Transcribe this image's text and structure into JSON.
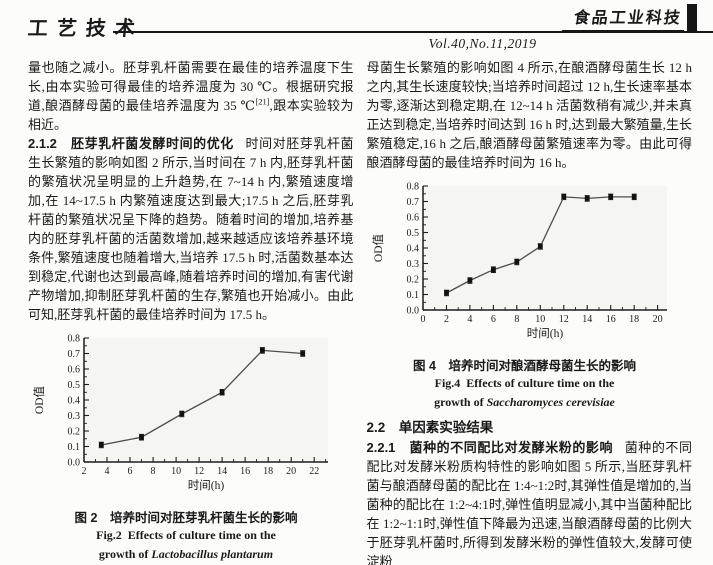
{
  "header": {
    "column_label": "工艺技术",
    "journal_name": "食品工业科技",
    "issue": "Vol.40,No.11,2019"
  },
  "left": {
    "p1_pre": "量也随之减小。胚芽乳杆菌需要在最佳的培养温度下生长,由本实验可得最佳的培养温度为 30 ℃。根据研究报道,酿酒酵母菌的最佳培养温度为 35 ℃",
    "p1_ref": "[21]",
    "p1_post": ",跟本实验较为相近。",
    "sec212_heading": "2.1.2　胚芽乳杆菌发酵时间的优化",
    "sec212_body": "时间对胚芽乳杆菌生长繁殖的影响如图 2 所示,当时间在 7 h 内,胚芽乳杆菌的繁殖状况呈明显的上升趋势,在 7~14 h 内,繁殖速度增加,在 14~17.5 h 内繁殖速度达到最大;17.5 h 之后,胚芽乳杆菌的繁殖状况呈下降的趋势。随着时间的增加,培养基内的胚芽乳杆菌的活菌数增加,越来越适应该培养基环境条件,繁殖速度也随着增大,当培养 17.5 h 时,活菌数基本达到稳定,代谢也达到最高峰,随着培养时间的增加,有害代谢产物增加,抑制胚芽乳杆菌的生存,繁殖也开始减小。由此可知,胚芽乳杆菌的最佳培养时间为 17.5 h。",
    "fig2_cap_zh": "图 2　培养时间对胚芽乳杆菌生长的影响",
    "fig2_cap_en1": "Fig.2  Effects of culture time on the",
    "fig2_cap_en2_pre": "growth of ",
    "fig2_cap_en2_species": "Lactobacillus plantarum"
  },
  "right": {
    "p1": "母菌生长繁殖的影响如图 4 所示,在酿酒酵母菌生长 12 h 之内,其生长速度较快;当培养时间超过 12 h,生长速率基本为零,逐渐达到稳定期,在 12~14 h 活菌数稍有减少,并未真正达到稳定,当培养时间达到 16 h 时,达到最大繁殖量,生长繁殖稳定,16 h 之后,酿酒酵母菌繁殖速率为零。由此可得酿酒酵母菌的最佳培养时间为 16 h。",
    "fig4_cap_zh": "图 4　培养时间对酿酒酵母菌生长的影响",
    "fig4_cap_en1": "Fig.4  Effects of culture time on the",
    "fig4_cap_en2_pre": "growth of ",
    "fig4_cap_en2_species": "Saccharomyces cerevisiae",
    "sec22_heading": "2.2　单因素实验结果",
    "sec221_heading": "2.2.1　菌种的不同配比对发酵米粉的影响",
    "sec221_body": "菌种的不同配比对发酵米粉质构特性的影响如图 5 所示,当胚芽乳杆菌与酿酒酵母菌的配比在 1:4~1:2时,其弹性值是增加的,当菌种的配比在 1:2~4:1时,弹性值明显减小,其中当菌种配比在 1:2~1:1时,弹性值下降最为迅速,当酿酒酵母菌的比例大于胚芽乳杆菌时,所得到发酵米粉的弹性值较大,发酵可使淀粉"
  },
  "chart_data": [
    {
      "type": "line",
      "title": "图2 培养时间对胚芽乳杆菌生长的影响",
      "x": [
        3.5,
        7,
        10.5,
        14,
        17.5,
        21
      ],
      "y": [
        0.11,
        0.16,
        0.31,
        0.45,
        0.72,
        0.7
      ],
      "yerr": 0.018,
      "xlabel": "时间(h)",
      "ylabel": "OD值",
      "xlim": [
        2,
        23.2
      ],
      "ylim": [
        0,
        0.8
      ],
      "xticks": [
        2,
        4,
        6,
        8,
        10,
        12,
        14,
        16,
        18,
        20,
        22
      ],
      "yticks": [
        0.0,
        0.1,
        0.2,
        0.3,
        0.4,
        0.5,
        0.6,
        0.7,
        0.8
      ],
      "marker": "square",
      "grid": false,
      "legend": null
    },
    {
      "type": "line",
      "title": "图4 培养时间对酿酒酵母菌生长的影响",
      "x": [
        2,
        4,
        6,
        8,
        10,
        12,
        14,
        16,
        18
      ],
      "y": [
        0.11,
        0.19,
        0.26,
        0.31,
        0.41,
        0.73,
        0.72,
        0.73,
        0.73
      ],
      "yerr": 0.018,
      "xlabel": "时间(h)",
      "ylabel": "OD值",
      "xlim": [
        0,
        20.8
      ],
      "ylim": [
        0,
        0.8
      ],
      "xticks": [
        0,
        2,
        4,
        6,
        8,
        10,
        12,
        14,
        16,
        18,
        20
      ],
      "yticks": [
        0.0,
        0.1,
        0.2,
        0.3,
        0.4,
        0.5,
        0.6,
        0.7,
        0.8
      ],
      "marker": "square",
      "grid": false,
      "legend": null
    }
  ]
}
